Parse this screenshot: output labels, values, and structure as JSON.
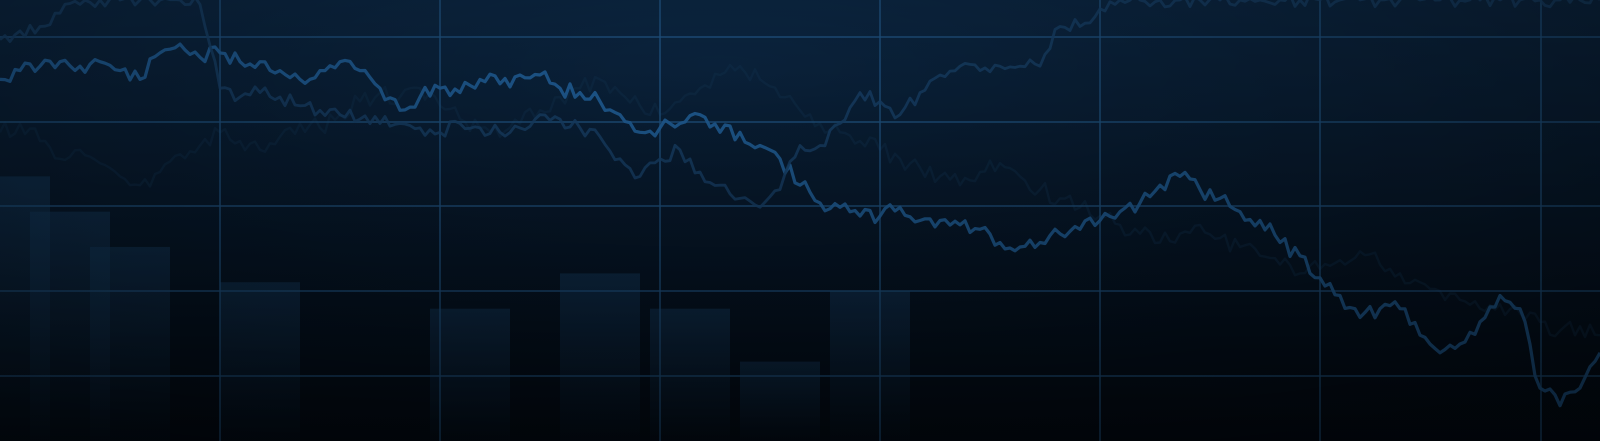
{
  "chart_data": {
    "type": "line",
    "grid": true,
    "colors": {
      "background_top": "#0b2540",
      "background_bottom": "#020a14",
      "grid": "#1e4e7a",
      "main_line": "#1f5a8f",
      "secondary_line": "#163d63",
      "ghost_line": "#0e2b47",
      "bars": "#143a5e"
    },
    "x": [
      0,
      1,
      2,
      3,
      4,
      5,
      6,
      7,
      8,
      9,
      10,
      11,
      12,
      13,
      14,
      15,
      16,
      17,
      18,
      19,
      20,
      21,
      22,
      23,
      24,
      25,
      26,
      27,
      28,
      29,
      30,
      31,
      32,
      33,
      34,
      35,
      36,
      37,
      38,
      39,
      40,
      41,
      42,
      43,
      44,
      45,
      46,
      47,
      48,
      49,
      50,
      51,
      52,
      53,
      54,
      55,
      56,
      57,
      58,
      59,
      60,
      61,
      62,
      63,
      64,
      65,
      66,
      67,
      68,
      69,
      70,
      71,
      72,
      73,
      74,
      75,
      76,
      77,
      78,
      79,
      80
    ],
    "series": [
      {
        "role": "main",
        "values": [
          82,
          84,
          85,
          86,
          85,
          86,
          84,
          82,
          88,
          90,
          87,
          88,
          86,
          86,
          84,
          82,
          84,
          86,
          84,
          80,
          75,
          78,
          80,
          79,
          82,
          81,
          83,
          83,
          80,
          79,
          77,
          74,
          70,
          71,
          72,
          74,
          70,
          70,
          67,
          64,
          58,
          54,
          53,
          51,
          51,
          53,
          50,
          50,
          49,
          48,
          45,
          44,
          45,
          47,
          48,
          50,
          52,
          54,
          58,
          60,
          57,
          55,
          52,
          50,
          45,
          42,
          37,
          33,
          28,
          30,
          30,
          24,
          20,
          22,
          27,
          33,
          30,
          12,
          8,
          12,
          20
        ]
      },
      {
        "role": "secondary",
        "values": [
          91,
          93,
          94,
          97,
          99,
          100,
          100,
          100,
          100,
          100,
          99,
          80,
          78,
          79,
          78,
          76,
          75,
          74,
          73,
          72,
          72,
          71,
          70,
          72,
          71,
          70,
          71,
          74,
          73,
          71,
          69,
          64,
          60,
          64,
          66,
          61,
          58,
          55,
          53,
          57,
          67,
          67,
          72,
          79,
          77,
          74,
          79,
          83,
          85,
          84,
          85,
          85,
          85,
          94,
          94,
          98,
          100,
          100,
          100,
          100,
          100,
          100,
          100,
          100,
          100,
          100,
          100,
          100,
          100,
          100,
          100,
          100,
          100,
          100,
          100,
          100,
          100,
          100,
          100,
          100,
          100
        ]
      },
      {
        "role": "ghost",
        "values": [
          70,
          72,
          68,
          64,
          66,
          63,
          60,
          58,
          61,
          65,
          67,
          70,
          68,
          66,
          69,
          72,
          71,
          74,
          77,
          79,
          78,
          80,
          76,
          73,
          71,
          69,
          72,
          75,
          78,
          80,
          82,
          79,
          76,
          74,
          77,
          80,
          83,
          85,
          82,
          78,
          75,
          72,
          70,
          68,
          66,
          64,
          62,
          60,
          58,
          61,
          63,
          60,
          57,
          55,
          53,
          51,
          49,
          47,
          45,
          47,
          49,
          46,
          44,
          42,
          40,
          38,
          39,
          41,
          43,
          40,
          38,
          36,
          34,
          32,
          30,
          31,
          29,
          27,
          25,
          26,
          24
        ]
      }
    ],
    "bars": [
      {
        "x": 0.5,
        "value": 60
      },
      {
        "x": 3.5,
        "value": 52
      },
      {
        "x": 6.5,
        "value": 44
      },
      {
        "x": 13,
        "value": 36
      },
      {
        "x": 23.5,
        "value": 30
      },
      {
        "x": 30,
        "value": 38
      },
      {
        "x": 34.5,
        "value": 30
      },
      {
        "x": 39,
        "value": 18
      },
      {
        "x": 43.5,
        "value": 34
      }
    ],
    "x_grid_lines": 7,
    "y_grid_lines": 5,
    "xlim": [
      0,
      80
    ],
    "ylim": [
      0,
      100
    ],
    "title": "",
    "xlabel": "",
    "ylabel": ""
  }
}
